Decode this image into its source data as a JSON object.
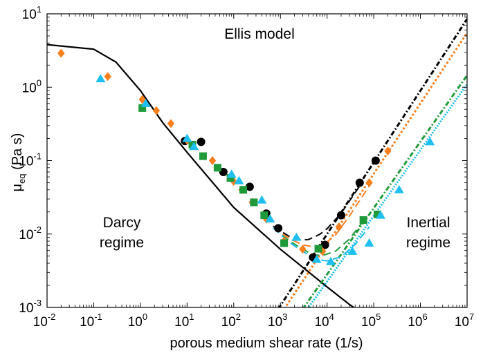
{
  "chart_data": {
    "type": "scatter",
    "xscale": "log",
    "yscale": "log",
    "xlim": [
      0.01,
      10000000
    ],
    "ylim": [
      0.001,
      10
    ],
    "xlabel": "porous medium shear rate (1/s)",
    "ylabel_main": "μ",
    "ylabel_sub": "eq",
    "ylabel_unit": " (Pa s)",
    "grid": false,
    "x_ticks": [
      {
        "base": "10",
        "exp": "-2",
        "value": 0.01
      },
      {
        "base": "10",
        "exp": "-1",
        "value": 0.1
      },
      {
        "base": "10",
        "exp": "0",
        "value": 1
      },
      {
        "base": "10",
        "exp": "1",
        "value": 10
      },
      {
        "base": "10",
        "exp": "2",
        "value": 100
      },
      {
        "base": "10",
        "exp": "3",
        "value": 1000
      },
      {
        "base": "10",
        "exp": "4",
        "value": 10000
      },
      {
        "base": "10",
        "exp": "5",
        "value": 100000
      },
      {
        "base": "10",
        "exp": "6",
        "value": 1000000
      },
      {
        "base": "10",
        "exp": "7",
        "value": 10000000
      }
    ],
    "y_ticks": [
      {
        "base": "10",
        "exp": "-3",
        "value": 0.001
      },
      {
        "base": "10",
        "exp": "-2",
        "value": 0.01
      },
      {
        "base": "10",
        "exp": "-1",
        "value": 0.1
      },
      {
        "base": "10",
        "exp": "0",
        "value": 1
      },
      {
        "base": "10",
        "exp": "1",
        "value": 10
      }
    ],
    "annotations": {
      "model": "Ellis model",
      "darcy_line1": "Darcy",
      "darcy_line2": "regime",
      "inertial_line1": "Inertial",
      "inertial_line2": "regime"
    },
    "model_curve": {
      "color": "#000000",
      "points": [
        [
          0.01,
          3.8
        ],
        [
          0.1,
          3.3
        ],
        [
          0.3,
          2.2
        ],
        [
          1,
          0.9
        ],
        [
          3,
          0.33
        ],
        [
          10,
          0.13
        ],
        [
          100,
          0.023
        ],
        [
          1000,
          0.0062
        ],
        [
          10000,
          0.0019
        ],
        [
          30000,
          0.0011
        ],
        [
          50000,
          0.00088
        ]
      ]
    },
    "series": [
      {
        "marker": "circle",
        "color": "#000000",
        "points": [
          [
            9,
            0.185
          ],
          [
            20,
            0.18
          ],
          [
            60,
            0.07
          ],
          [
            220,
            0.044
          ],
          [
            500,
            0.019
          ],
          [
            900,
            0.012
          ],
          [
            5000,
            0.0048
          ],
          [
            9000,
            0.0071
          ],
          [
            20000,
            0.018
          ],
          [
            50000,
            0.05
          ],
          [
            110000,
            0.1
          ]
        ],
        "combined_curve": [
          [
            700,
            0.0128
          ],
          [
            1500,
            0.0094
          ],
          [
            2500,
            0.0083
          ],
          [
            4000,
            0.0084
          ],
          [
            7000,
            0.0099
          ],
          [
            10000,
            0.0118
          ],
          [
            20000,
            0.0192
          ],
          [
            50000,
            0.045
          ]
        ],
        "inertial_line": [
          [
            900,
            0.00095
          ],
          [
            10000000,
            8.5
          ]
        ]
      },
      {
        "marker": "diamond",
        "color": "#f77f1e",
        "points": [
          [
            0.02,
            2.9
          ],
          [
            0.2,
            1.4
          ],
          [
            1.1,
            0.68
          ],
          [
            2.2,
            0.48
          ],
          [
            4.5,
            0.32
          ],
          [
            10,
            0.19
          ],
          [
            35,
            0.1
          ],
          [
            100,
            0.052
          ],
          [
            150,
            0.04
          ],
          [
            250,
            0.027
          ],
          [
            500,
            0.016
          ],
          [
            1200,
            0.008
          ],
          [
            3000,
            0.0062
          ],
          [
            8000,
            0.0058
          ],
          [
            18000,
            0.0125
          ],
          [
            80000,
            0.05
          ],
          [
            200000,
            0.135
          ]
        ],
        "combined_curve": [
          [
            700,
            0.0124
          ],
          [
            1500,
            0.0088
          ],
          [
            3000,
            0.0071
          ],
          [
            5000,
            0.0067
          ],
          [
            8000,
            0.007
          ],
          [
            15000,
            0.0096
          ],
          [
            30000,
            0.0175
          ],
          [
            80000,
            0.045
          ]
        ],
        "inertial_line": [
          [
            1200,
            0.00095
          ],
          [
            10000000,
            5.5
          ]
        ]
      },
      {
        "marker": "square",
        "color": "#1f9a3b",
        "points": [
          [
            1.1,
            0.52
          ],
          [
            13,
            0.165
          ],
          [
            22,
            0.115
          ],
          [
            45,
            0.08
          ],
          [
            85,
            0.058
          ],
          [
            160,
            0.04
          ],
          [
            270,
            0.027
          ],
          [
            450,
            0.018
          ],
          [
            1200,
            0.0075
          ],
          [
            6500,
            0.0063
          ],
          [
            60000,
            0.0155
          ],
          [
            120000,
            0.0185
          ]
        ],
        "combined_curve": [
          [
            700,
            0.0122
          ],
          [
            1500,
            0.0082
          ],
          [
            3000,
            0.0062
          ],
          [
            5000,
            0.0052
          ],
          [
            8000,
            0.0051
          ],
          [
            15000,
            0.0058
          ],
          [
            30000,
            0.0085
          ],
          [
            60000,
            0.015
          ]
        ],
        "inertial_line": [
          [
            3000,
            0.00095
          ],
          [
            10000000,
            1.45
          ]
        ]
      },
      {
        "marker": "triangle",
        "color": "#1fbfef",
        "points": [
          [
            0.14,
            1.3
          ],
          [
            1.3,
            0.6
          ],
          [
            10,
            0.2
          ],
          [
            14,
            0.155
          ],
          [
            90,
            0.065
          ],
          [
            130,
            0.053
          ],
          [
            400,
            0.029
          ],
          [
            600,
            0.016
          ],
          [
            2200,
            0.009
          ],
          [
            6000,
            0.0045
          ],
          [
            12000,
            0.0042
          ],
          [
            35000,
            0.0058
          ],
          [
            80000,
            0.0075
          ],
          [
            140000,
            0.018
          ],
          [
            350000,
            0.04
          ],
          [
            1600000,
            0.18
          ]
        ],
        "combined_curve": [
          [
            700,
            0.0122
          ],
          [
            1500,
            0.0078
          ],
          [
            3000,
            0.0058
          ],
          [
            6000,
            0.0045
          ],
          [
            10000,
            0.0043
          ],
          [
            20000,
            0.0049
          ],
          [
            40000,
            0.0072
          ],
          [
            80000,
            0.0125
          ]
        ],
        "inertial_line": [
          [
            3800,
            0.00095
          ],
          [
            10000000,
            1.1
          ]
        ]
      }
    ]
  }
}
